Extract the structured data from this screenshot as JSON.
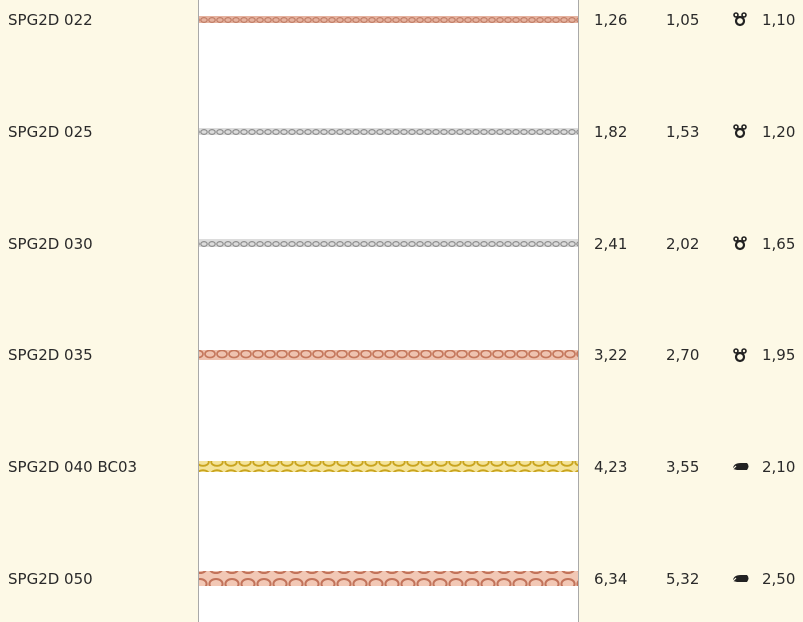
{
  "table": {
    "rows": [
      [
        "SPG2D 022",
        "1,26",
        "1,05",
        "1,10"
      ],
      [
        "SPG2D 025",
        "1,82",
        "1,53",
        "1,20"
      ],
      [
        "SPG2D 030",
        "2,41",
        "2,02",
        "1,65"
      ],
      [
        "SPG2D 035",
        "3,22",
        "2,70",
        "1,95"
      ],
      [
        "SPG2D 040 BC03",
        "4,23",
        "3,55",
        "2,10"
      ],
      [
        "SPG2D 050",
        "6,34",
        "5,32",
        "2,50"
      ]
    ]
  }
}
